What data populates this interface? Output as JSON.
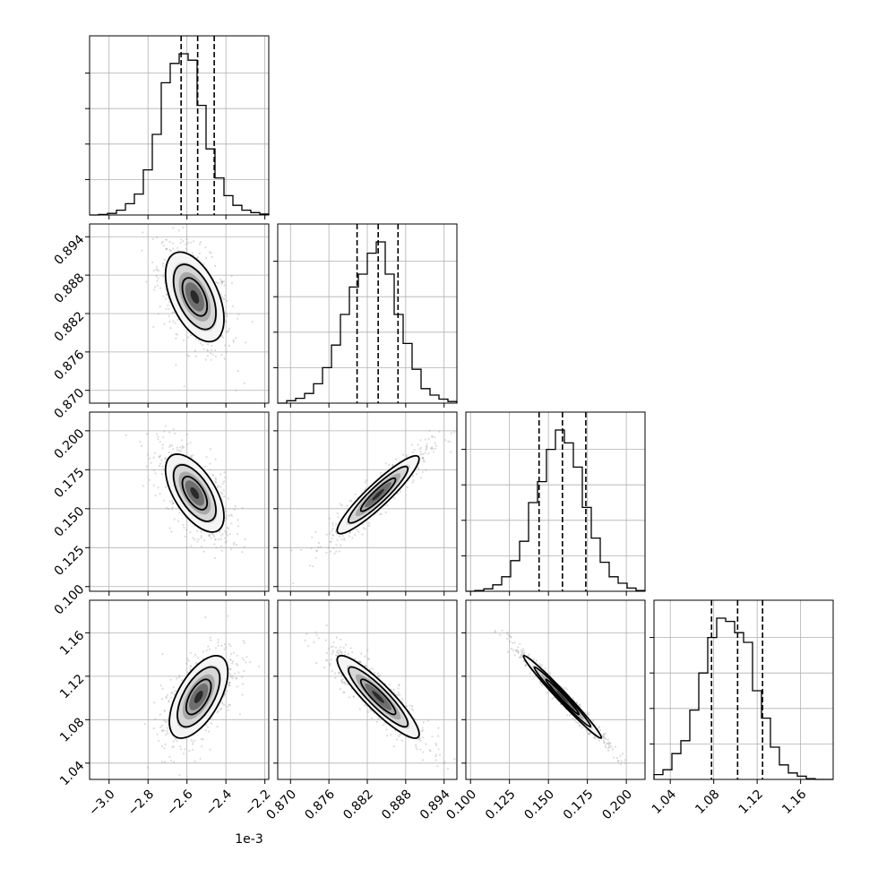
{
  "chart_data": {
    "type": "scatter",
    "variables": [
      {
        "scale_note": "1e-3",
        "ticks": [
          -3.0,
          -2.8,
          -2.6,
          -2.4,
          -2.2
        ],
        "tick_labels": [
          "−3.0",
          "−2.8",
          "−2.6",
          "−2.4",
          "−2.2"
        ],
        "range": [
          -3.1,
          -2.18
        ],
        "quantiles": [
          -2.63,
          -2.545,
          -2.46
        ],
        "hist": [
          0,
          0.003,
          0.01,
          0.03,
          0.07,
          0.13,
          0.28,
          0.5,
          0.82,
          0.94,
          1.0,
          0.96,
          0.68,
          0.41,
          0.23,
          0.12,
          0.06,
          0.03,
          0.015,
          0.006
        ]
      },
      {
        "ticks": [
          0.87,
          0.876,
          0.882,
          0.888,
          0.894
        ],
        "tick_labels": [
          "0.870",
          "0.876",
          "0.882",
          "0.888",
          "0.894"
        ],
        "range": [
          0.868,
          0.896
        ],
        "quantiles": [
          0.8804,
          0.8837,
          0.8868
        ],
        "hist": [
          0,
          0.015,
          0.03,
          0.06,
          0.12,
          0.22,
          0.36,
          0.55,
          0.72,
          0.8,
          0.93,
          1.0,
          0.8,
          0.55,
          0.37,
          0.21,
          0.09,
          0.05,
          0.025,
          0.01
        ]
      },
      {
        "ticks": [
          0.1,
          0.125,
          0.15,
          0.175,
          0.2
        ],
        "tick_labels": [
          "0.100",
          "0.125",
          "0.150",
          "0.175",
          "0.200"
        ],
        "range": [
          0.097,
          0.212
        ],
        "quantiles": [
          0.144,
          0.159,
          0.174
        ],
        "hist": [
          0,
          0.005,
          0.015,
          0.04,
          0.09,
          0.19,
          0.31,
          0.55,
          0.68,
          0.88,
          1.0,
          0.92,
          0.77,
          0.52,
          0.33,
          0.18,
          0.09,
          0.05,
          0.02,
          0.005
        ]
      },
      {
        "ticks": [
          1.04,
          1.08,
          1.12,
          1.16
        ],
        "tick_labels": [
          "1.04",
          "1.08",
          "1.12",
          "1.16"
        ],
        "range": [
          1.025,
          1.19
        ],
        "quantiles": [
          1.078,
          1.102,
          1.125
        ],
        "hist": [
          0.03,
          0.06,
          0.16,
          0.24,
          0.43,
          0.66,
          0.88,
          1.0,
          0.98,
          0.91,
          0.85,
          0.55,
          0.38,
          0.2,
          0.09,
          0.04,
          0.02,
          0.005,
          0,
          0
        ]
      }
    ],
    "pairs": [
      {
        "row": 1,
        "col": 0,
        "center": [
          -2.56,
          0.8846
        ],
        "sd": [
          0.075,
          0.0035
        ],
        "corr": -0.5
      },
      {
        "row": 2,
        "col": 0,
        "center": [
          -2.56,
          0.16
        ],
        "sd": [
          0.075,
          0.0125
        ],
        "corr": -0.6
      },
      {
        "row": 2,
        "col": 1,
        "center": [
          0.8837,
          0.159
        ],
        "sd": [
          0.0032,
          0.0125
        ],
        "corr": 0.92
      },
      {
        "row": 3,
        "col": 0,
        "center": [
          -2.54,
          1.101
        ],
        "sd": [
          0.075,
          0.019
        ],
        "corr": 0.6
      },
      {
        "row": 3,
        "col": 1,
        "center": [
          0.8837,
          1.101
        ],
        "sd": [
          0.0032,
          0.019
        ],
        "corr": -0.9
      },
      {
        "row": 3,
        "col": 2,
        "center": [
          0.159,
          1.101
        ],
        "sd": [
          0.0125,
          0.019
        ],
        "corr": -0.985
      }
    ],
    "grid": true
  }
}
